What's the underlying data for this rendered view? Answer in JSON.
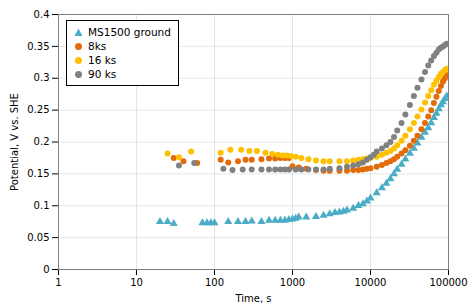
{
  "chart_data": {
    "type": "scatter",
    "xlabel": "Time, s",
    "ylabel": "Potential, V vs. SHE",
    "xlim": [
      1,
      100000
    ],
    "ylim": [
      0,
      0.4
    ],
    "xticks": [
      1,
      10,
      100,
      1000,
      10000,
      100000
    ],
    "yticks": [
      0,
      0.05,
      0.1,
      0.15,
      0.2,
      0.25,
      0.3,
      0.35,
      0.4
    ],
    "log": "x",
    "grid": true,
    "legend": "upper left",
    "series": [
      {
        "name": "MS1500 ground",
        "color": "#4BACC6",
        "marker": "triangle",
        "x": [
          20,
          25,
          30,
          70,
          80,
          90,
          100,
          150,
          200,
          250,
          300,
          400,
          500,
          600,
          700,
          800,
          900,
          1000,
          1100,
          1200,
          1500,
          2000,
          2500,
          3000,
          3500,
          4000,
          4500,
          5000,
          6000,
          7000,
          8000,
          9000,
          10000,
          12000,
          14000,
          16000,
          18000,
          20000,
          22000,
          25000,
          28000,
          32000,
          36000,
          40000,
          45000,
          50000,
          55000,
          60000,
          65000,
          70000,
          75000,
          80000,
          85000,
          90000,
          95000
        ],
        "values": [
          0.075,
          0.075,
          0.072,
          0.073,
          0.073,
          0.073,
          0.073,
          0.075,
          0.075,
          0.075,
          0.076,
          0.075,
          0.077,
          0.077,
          0.077,
          0.077,
          0.078,
          0.079,
          0.08,
          0.082,
          0.082,
          0.083,
          0.085,
          0.087,
          0.089,
          0.09,
          0.091,
          0.093,
          0.096,
          0.1,
          0.103,
          0.107,
          0.112,
          0.12,
          0.128,
          0.135,
          0.142,
          0.15,
          0.157,
          0.165,
          0.173,
          0.182,
          0.19,
          0.198,
          0.207,
          0.215,
          0.222,
          0.23,
          0.238,
          0.245,
          0.252,
          0.258,
          0.263,
          0.268,
          0.272
        ]
      },
      {
        "name": "8ks",
        "color": "#E36C09",
        "marker": "circle",
        "x": [
          30,
          40,
          60,
          120,
          150,
          200,
          250,
          300,
          400,
          500,
          600,
          700,
          800,
          900,
          1000,
          1200,
          1500,
          2000,
          2500,
          3000,
          4000,
          5000,
          6000,
          7000,
          8000,
          9000,
          10000,
          12000,
          14000,
          16000,
          18000,
          20000,
          22000,
          25000,
          28000,
          32000,
          36000,
          40000,
          45000,
          50000,
          55000,
          60000,
          65000,
          70000,
          75000,
          80000,
          85000,
          90000,
          95000
        ],
        "values": [
          0.175,
          0.17,
          0.167,
          0.172,
          0.168,
          0.17,
          0.172,
          0.172,
          0.173,
          0.174,
          0.174,
          0.175,
          0.175,
          0.175,
          0.162,
          0.16,
          0.158,
          0.156,
          0.155,
          0.155,
          0.155,
          0.155,
          0.156,
          0.156,
          0.157,
          0.158,
          0.159,
          0.161,
          0.164,
          0.167,
          0.17,
          0.173,
          0.177,
          0.182,
          0.187,
          0.194,
          0.202,
          0.21,
          0.22,
          0.23,
          0.24,
          0.25,
          0.261,
          0.271,
          0.28,
          0.288,
          0.295,
          0.3,
          0.305
        ]
      },
      {
        "name": "16 ks",
        "color": "#FFC000",
        "marker": "circle",
        "x": [
          25,
          35,
          50,
          120,
          160,
          220,
          280,
          350,
          450,
          550,
          650,
          750,
          850,
          950,
          1100,
          1300,
          1600,
          2000,
          2500,
          3000,
          4000,
          5000,
          6000,
          7000,
          8000,
          9000,
          10000,
          12000,
          14000,
          16000,
          18000,
          20000,
          22000,
          25000,
          28000,
          32000,
          36000,
          40000,
          45000,
          50000,
          55000,
          60000,
          65000,
          70000,
          75000,
          80000,
          85000,
          90000,
          95000
        ],
        "values": [
          0.182,
          0.176,
          0.185,
          0.183,
          0.188,
          0.188,
          0.186,
          0.186,
          0.183,
          0.181,
          0.18,
          0.179,
          0.179,
          0.178,
          0.177,
          0.175,
          0.173,
          0.171,
          0.17,
          0.17,
          0.17,
          0.17,
          0.171,
          0.172,
          0.173,
          0.174,
          0.175,
          0.177,
          0.18,
          0.183,
          0.186,
          0.19,
          0.195,
          0.202,
          0.21,
          0.22,
          0.23,
          0.24,
          0.251,
          0.262,
          0.272,
          0.281,
          0.29,
          0.296,
          0.302,
          0.307,
          0.31,
          0.313,
          0.315
        ]
      },
      {
        "name": "90 ks",
        "color": "#808080",
        "marker": "circle",
        "x": [
          35,
          55,
          130,
          170,
          230,
          300,
          400,
          500,
          600,
          700,
          800,
          900,
          1100,
          1300,
          1600,
          2000,
          2500,
          3000,
          4000,
          5000,
          6000,
          7000,
          8000,
          9000,
          10000,
          11000,
          12000,
          14000,
          16000,
          18000,
          20000,
          22000,
          25000,
          28000,
          32000,
          36000,
          40000,
          45000,
          50000,
          55000,
          60000,
          65000,
          70000,
          75000,
          80000,
          85000,
          90000,
          95000
        ],
        "values": [
          0.163,
          0.167,
          0.158,
          0.156,
          0.157,
          0.157,
          0.157,
          0.157,
          0.157,
          0.157,
          0.157,
          0.157,
          0.157,
          0.157,
          0.157,
          0.157,
          0.157,
          0.158,
          0.159,
          0.161,
          0.163,
          0.165,
          0.168,
          0.172,
          0.176,
          0.18,
          0.185,
          0.19,
          0.195,
          0.2,
          0.208,
          0.218,
          0.23,
          0.243,
          0.258,
          0.272,
          0.285,
          0.298,
          0.31,
          0.32,
          0.328,
          0.335,
          0.34,
          0.345,
          0.348,
          0.35,
          0.352,
          0.354
        ]
      }
    ]
  }
}
